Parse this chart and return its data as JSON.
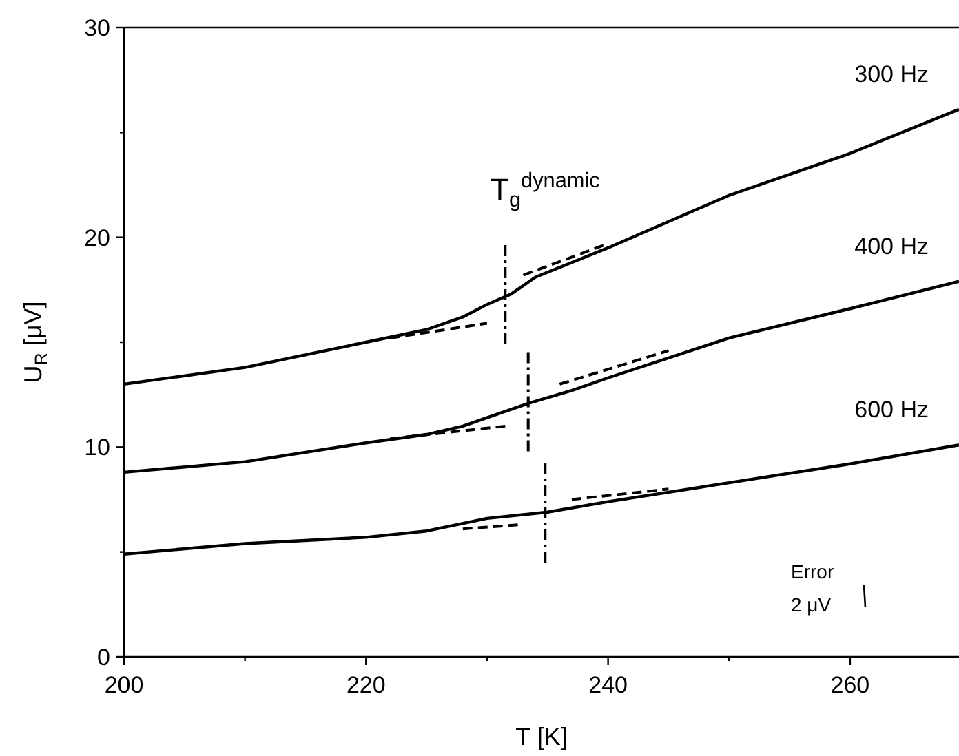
{
  "chart_data": {
    "type": "line",
    "xlabel": "T [K]",
    "ylabel": "U$_{R}$ [μV]",
    "xlim": [
      200,
      269
    ],
    "ylim": [
      0,
      30
    ],
    "xticks": [
      200,
      {
        "value": 210,
        "label": null
      },
      220,
      {
        "value": 230,
        "label": null
      },
      240,
      {
        "value": 250,
        "label": null
      },
      260
    ],
    "yticks": [
      0,
      {
        "value": 5,
        "label": null
      },
      10,
      {
        "value": 15,
        "label": null
      },
      20,
      {
        "value": 25,
        "label": null
      },
      30
    ],
    "grid": false,
    "marker": "none",
    "annotations": [
      "T$_{g}$$^{dynamic}$",
      "Error",
      "2 μV"
    ],
    "series": [
      {
        "name": "300 Hz",
        "color": "#000000",
        "line_style": "solid",
        "x": [
          200,
          210,
          220,
          225,
          228,
          230,
          232,
          234,
          237,
          240,
          250,
          260,
          269
        ],
        "values": [
          13.0,
          13.8,
          15.0,
          15.6,
          16.2,
          16.8,
          17.3,
          18.1,
          18.8,
          19.5,
          22.0,
          24.0,
          26.1
        ]
      },
      {
        "name": "400 Hz",
        "color": "#000000",
        "line_style": "solid",
        "x": [
          200,
          210,
          220,
          225,
          228,
          230,
          233.5,
          237,
          240,
          250,
          260,
          269
        ],
        "values": [
          8.8,
          9.3,
          10.2,
          10.6,
          11.0,
          11.4,
          12.1,
          12.7,
          13.3,
          15.2,
          16.6,
          17.9
        ]
      },
      {
        "name": "600 Hz",
        "color": "#000000",
        "line_style": "solid",
        "x": [
          200,
          210,
          220,
          225,
          230,
          235,
          240,
          250,
          260,
          269
        ],
        "values": [
          4.9,
          5.4,
          5.7,
          6.0,
          6.6,
          6.9,
          7.4,
          8.3,
          9.2,
          10.1
        ]
      },
      {
        "color": "#000000",
        "line_style": "dashed",
        "x": [
          222,
          230
        ],
        "values": [
          15.2,
          15.9
        ]
      },
      {
        "color": "#000000",
        "line_style": "dashed",
        "x": [
          233,
          240
        ],
        "values": [
          18.2,
          19.7
        ]
      },
      {
        "color": "#000000",
        "line_style": "dashed",
        "x": [
          222,
          231.5
        ],
        "values": [
          10.4,
          11.0
        ]
      },
      {
        "color": "#000000",
        "line_style": "dashed",
        "x": [
          236,
          245
        ],
        "values": [
          13.0,
          14.6
        ]
      },
      {
        "color": "#000000",
        "line_style": "dashed",
        "x": [
          228,
          232.7
        ],
        "values": [
          6.1,
          6.3
        ]
      },
      {
        "color": "#000000",
        "line_style": "dashed",
        "x": [
          237,
          245
        ],
        "values": [
          7.5,
          8.0
        ]
      },
      {
        "color": "#000000",
        "line_style": "dotted",
        "x": [
          231.5,
          231.5
        ],
        "values": [
          14.9,
          19.7
        ]
      },
      {
        "color": "#000000",
        "line_style": "dotted",
        "x": [
          233.4,
          233.4
        ],
        "values": [
          9.8,
          14.6
        ]
      },
      {
        "color": "#000000",
        "line_style": "dotted",
        "x": [
          234.8,
          234.8
        ],
        "values": [
          4.5,
          9.3
        ]
      }
    ]
  }
}
